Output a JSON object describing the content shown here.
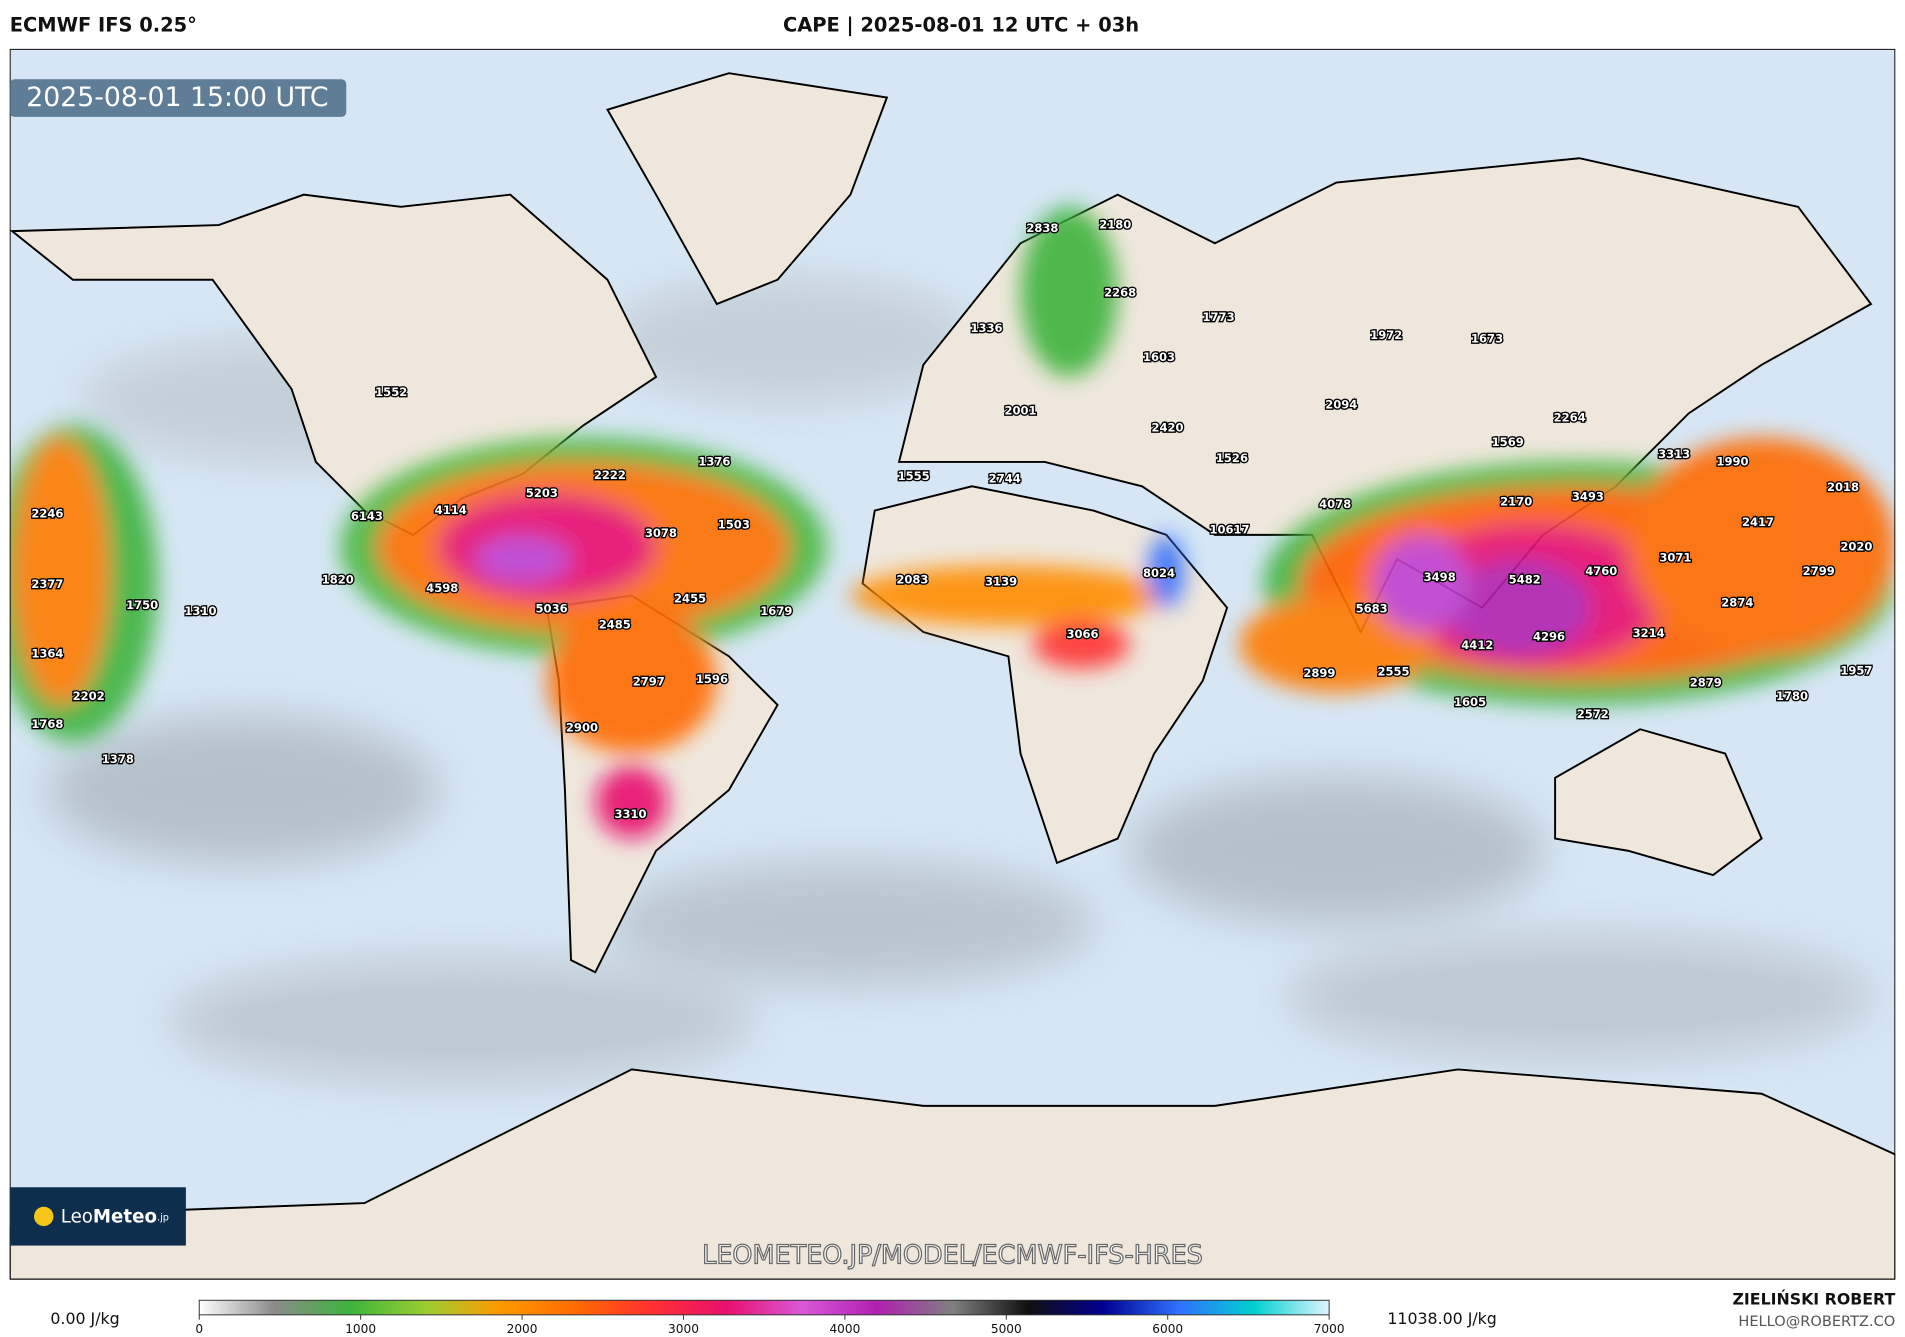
{
  "header": {
    "model": "ECMWF IFS 0.25°",
    "title": "CAPE | 2025-08-01 12 UTC + 03h"
  },
  "map": {
    "valid_time": "2025-08-01 15:00 UTC",
    "watermark": "LEOMETEO.JP/MODEL/ECMWF-IFS-HRES",
    "logo": [
      "Leo",
      "Meteo",
      ".jp"
    ],
    "labels": [
      2838,
      2180,
      2268,
      1773,
      1336,
      1603,
      1972,
      1673,
      1552,
      2094,
      2001,
      2264,
      2420,
      1526,
      1569,
      1376,
      3313,
      1990,
      2222,
      1555,
      2744,
      2018,
      5203,
      3493,
      2170,
      4078,
      4114,
      2246,
      6143,
      2417,
      1503,
      3078,
      10617,
      3071,
      2020,
      3498,
      4760,
      5482,
      8024,
      2799,
      1820,
      2377,
      2083,
      3139,
      4598,
      2455,
      2874,
      1750,
      1310,
      5036,
      1679,
      5683,
      2485,
      3066,
      3214,
      4296,
      4412,
      1364,
      2899,
      2555,
      1957,
      2797,
      1596,
      2879,
      2202,
      1780,
      1605,
      2572,
      1768,
      2900,
      1378,
      3310
    ]
  },
  "colorbar": {
    "min_label": "0.00 J/kg",
    "max_label": "11038.00 J/kg",
    "lim": [
      0,
      7000
    ],
    "ticks": [
      0,
      1000,
      2000,
      3000,
      4000,
      5000,
      6000,
      7000
    ],
    "colors": [
      "#ffffff",
      "#8a8a8a",
      "#3cb43c",
      "#9acd32",
      "#ff9900",
      "#ff6a00",
      "#ff3030",
      "#e8106e",
      "#d858d8",
      "#b020b0",
      "#808080",
      "#101010",
      "#000090",
      "#3070ff",
      "#00d0d0",
      "#e0f4ff"
    ]
  },
  "credits": {
    "author": "ZIELIŃSKI ROBERT",
    "email": "HELLO@ROBERTZ.CO"
  }
}
